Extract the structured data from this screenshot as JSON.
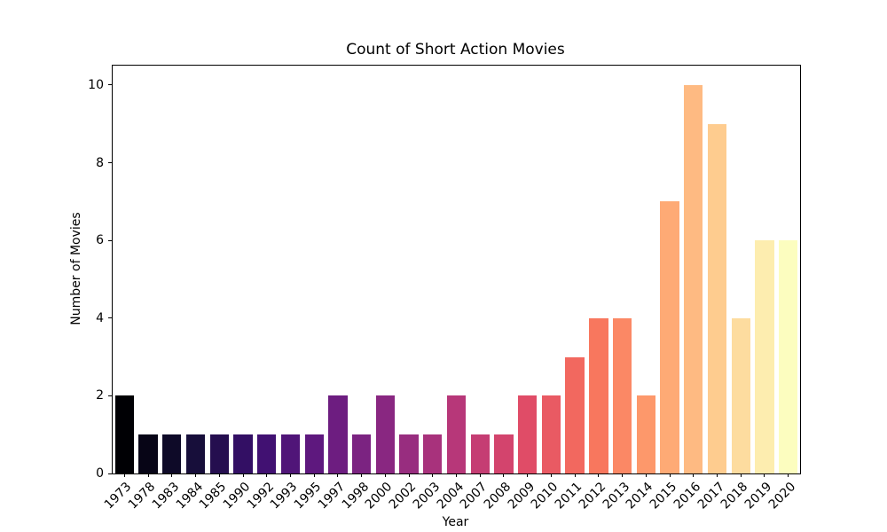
{
  "figure": {
    "background": "#ffffff",
    "spine_color": "#000000",
    "text_color": "#000000"
  },
  "chart_data": {
    "type": "bar",
    "title": "Count of Short Action Movies",
    "xlabel": "Year",
    "ylabel": "Number of Movies",
    "categories": [
      "1973",
      "1978",
      "1983",
      "1984",
      "1985",
      "1990",
      "1992",
      "1993",
      "1995",
      "1997",
      "1998",
      "2000",
      "2002",
      "2003",
      "2004",
      "2007",
      "2008",
      "2009",
      "2010",
      "2011",
      "2012",
      "2013",
      "2014",
      "2015",
      "2016",
      "2017",
      "2018",
      "2019",
      "2020"
    ],
    "values": [
      2,
      1,
      1,
      1,
      1,
      1,
      1,
      1,
      1,
      2,
      1,
      2,
      1,
      1,
      2,
      1,
      1,
      2,
      2,
      3,
      4,
      4,
      2,
      7,
      10,
      9,
      4,
      6,
      6
    ],
    "bar_colors": [
      "#000004",
      "#070516",
      "#0e0a28",
      "#170e3a",
      "#250e4f",
      "#330f64",
      "#411172",
      "#501578",
      "#5e187e",
      "#6d1d80",
      "#7b2381",
      "#892781",
      "#982d7f",
      "#a8327c",
      "#b73779",
      "#c53d73",
      "#d3446d",
      "#e04c67",
      "#e95a63",
      "#f2685f",
      "#f8775e",
      "#fb8865",
      "#fd986b",
      "#feaa75",
      "#feba82",
      "#fecc8f",
      "#fddc9f",
      "#fdedaf",
      "#fcfdbf"
    ],
    "colormap": "magma",
    "yticks": [
      0,
      2,
      4,
      6,
      8,
      10
    ],
    "ylim": [
      0,
      10.5
    ],
    "bar_width_fraction": 0.8,
    "grid": false,
    "legend_position": "none",
    "x_tick_rotation_deg": 45
  }
}
